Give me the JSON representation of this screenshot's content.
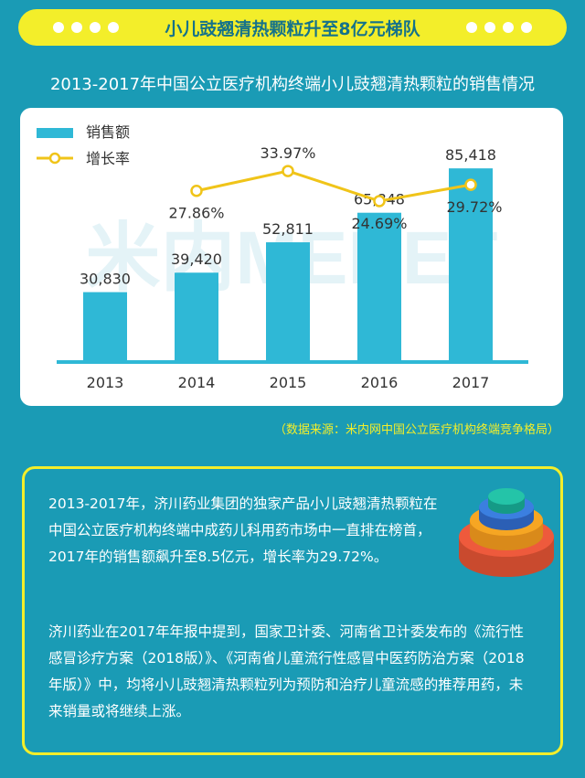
{
  "banner": {
    "title": "小儿豉翘清热颗粒升至8亿元梯队"
  },
  "chart_heading": "2013-2017年中国公立医疗机构终端小儿豉翘清热颗粒的销售情况",
  "chart_data": {
    "type": "bar",
    "categories": [
      "2013",
      "2014",
      "2015",
      "2016",
      "2017"
    ],
    "series": [
      {
        "name": "销售额",
        "type": "bar",
        "values": [
          30830,
          39420,
          52811,
          65848,
          85418
        ],
        "labels": [
          "30,830",
          "39,420",
          "52,811",
          "65,848",
          "85,418"
        ],
        "color": "#2fb8d6"
      },
      {
        "name": "增长率",
        "type": "line",
        "values": [
          null,
          27.86,
          33.97,
          24.69,
          29.72
        ],
        "labels": [
          "",
          "27.86%",
          "33.97%",
          "24.69%",
          "29.72%"
        ],
        "color": "#f0c419"
      }
    ],
    "watermark": "米内MENET",
    "bar_ylim": [
      0,
      100000
    ],
    "line_ylim": [
      -25,
      45
    ],
    "legend": "top-left",
    "grid": false
  },
  "source_note": "（数据来源：米内网中国公立医疗机构终端竞争格局）",
  "paragraphs": [
    "2013-2017年，济川药业集团的独家产品小儿豉翘清热颗粒在中国公立医疗机构终端中成药儿科用药市场中一直排在榜首，2017年的销售额飙升至8.5亿元，增长率为29.72%。",
    "济川药业在2017年年报中提到，国家卫计委、河南省卫计委发布的《流行性感冒诊疗方案（2018版）》、《河南省儿童流行性感冒中医药防治方案（2018年版）》中，均将小儿豉翘清热颗粒列为预防和治疗儿童流感的推荐用药，未来销量或将继续上涨。"
  ],
  "colors": {
    "background": "#1a9bb5",
    "accent": "#f3ee2a",
    "bar": "#2fb8d6",
    "line": "#f0c419"
  }
}
